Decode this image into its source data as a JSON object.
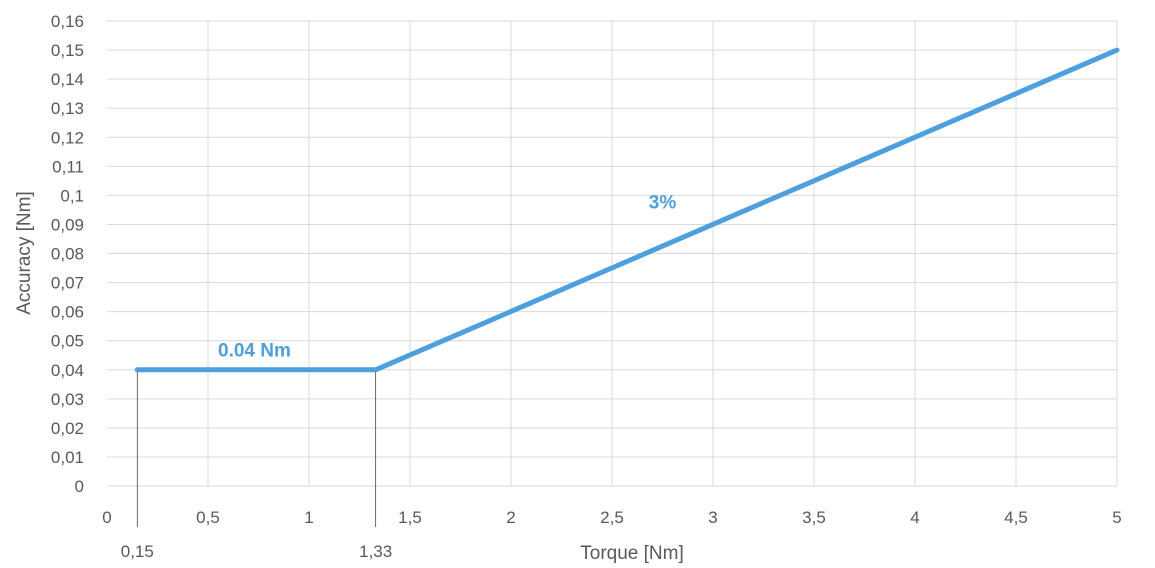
{
  "chart_data": {
    "type": "line",
    "xlabel": "Torque [Nm]",
    "ylabel": "Accuracy [Nm]",
    "xlim": [
      0,
      5
    ],
    "ylim": [
      0,
      0.16
    ],
    "grid": true,
    "x_ticks": [
      {
        "value": 0,
        "label": "0"
      },
      {
        "value": 0.5,
        "label": "0,5"
      },
      {
        "value": 1,
        "label": "1"
      },
      {
        "value": 1.5,
        "label": "1,5"
      },
      {
        "value": 2,
        "label": "2"
      },
      {
        "value": 2.5,
        "label": "2,5"
      },
      {
        "value": 3,
        "label": "3"
      },
      {
        "value": 3.5,
        "label": "3,5"
      },
      {
        "value": 4,
        "label": "4"
      },
      {
        "value": 4.5,
        "label": "4,5"
      },
      {
        "value": 5,
        "label": "5"
      }
    ],
    "y_ticks": [
      {
        "value": 0,
        "label": "0"
      },
      {
        "value": 0.01,
        "label": "0,01"
      },
      {
        "value": 0.02,
        "label": "0,02"
      },
      {
        "value": 0.03,
        "label": "0,03"
      },
      {
        "value": 0.04,
        "label": "0,04"
      },
      {
        "value": 0.05,
        "label": "0,05"
      },
      {
        "value": 0.06,
        "label": "0,06"
      },
      {
        "value": 0.07,
        "label": "0,07"
      },
      {
        "value": 0.08,
        "label": "0,08"
      },
      {
        "value": 0.09,
        "label": "0,09"
      },
      {
        "value": 0.1,
        "label": "0,1"
      },
      {
        "value": 0.11,
        "label": "0,11"
      },
      {
        "value": 0.12,
        "label": "0,12"
      },
      {
        "value": 0.13,
        "label": "0,13"
      },
      {
        "value": 0.14,
        "label": "0,14"
      },
      {
        "value": 0.15,
        "label": "0,15"
      },
      {
        "value": 0.16,
        "label": "0,16"
      }
    ],
    "series": [
      {
        "color": "#4E9FDE",
        "x": [
          0.15,
          1.33,
          5
        ],
        "y": [
          0.04,
          0.04,
          0.15
        ]
      }
    ],
    "markers": [
      {
        "x": 0.15,
        "label": "0,15"
      },
      {
        "x": 1.33,
        "label": "1,33"
      }
    ],
    "annotations": [
      {
        "text": "0.04 Nm",
        "x": 0.73,
        "y": 0.0445,
        "color": "#4E9FDE"
      },
      {
        "text": "3%",
        "x": 2.75,
        "y": 0.0955,
        "color": "#4E9FDE"
      }
    ]
  }
}
